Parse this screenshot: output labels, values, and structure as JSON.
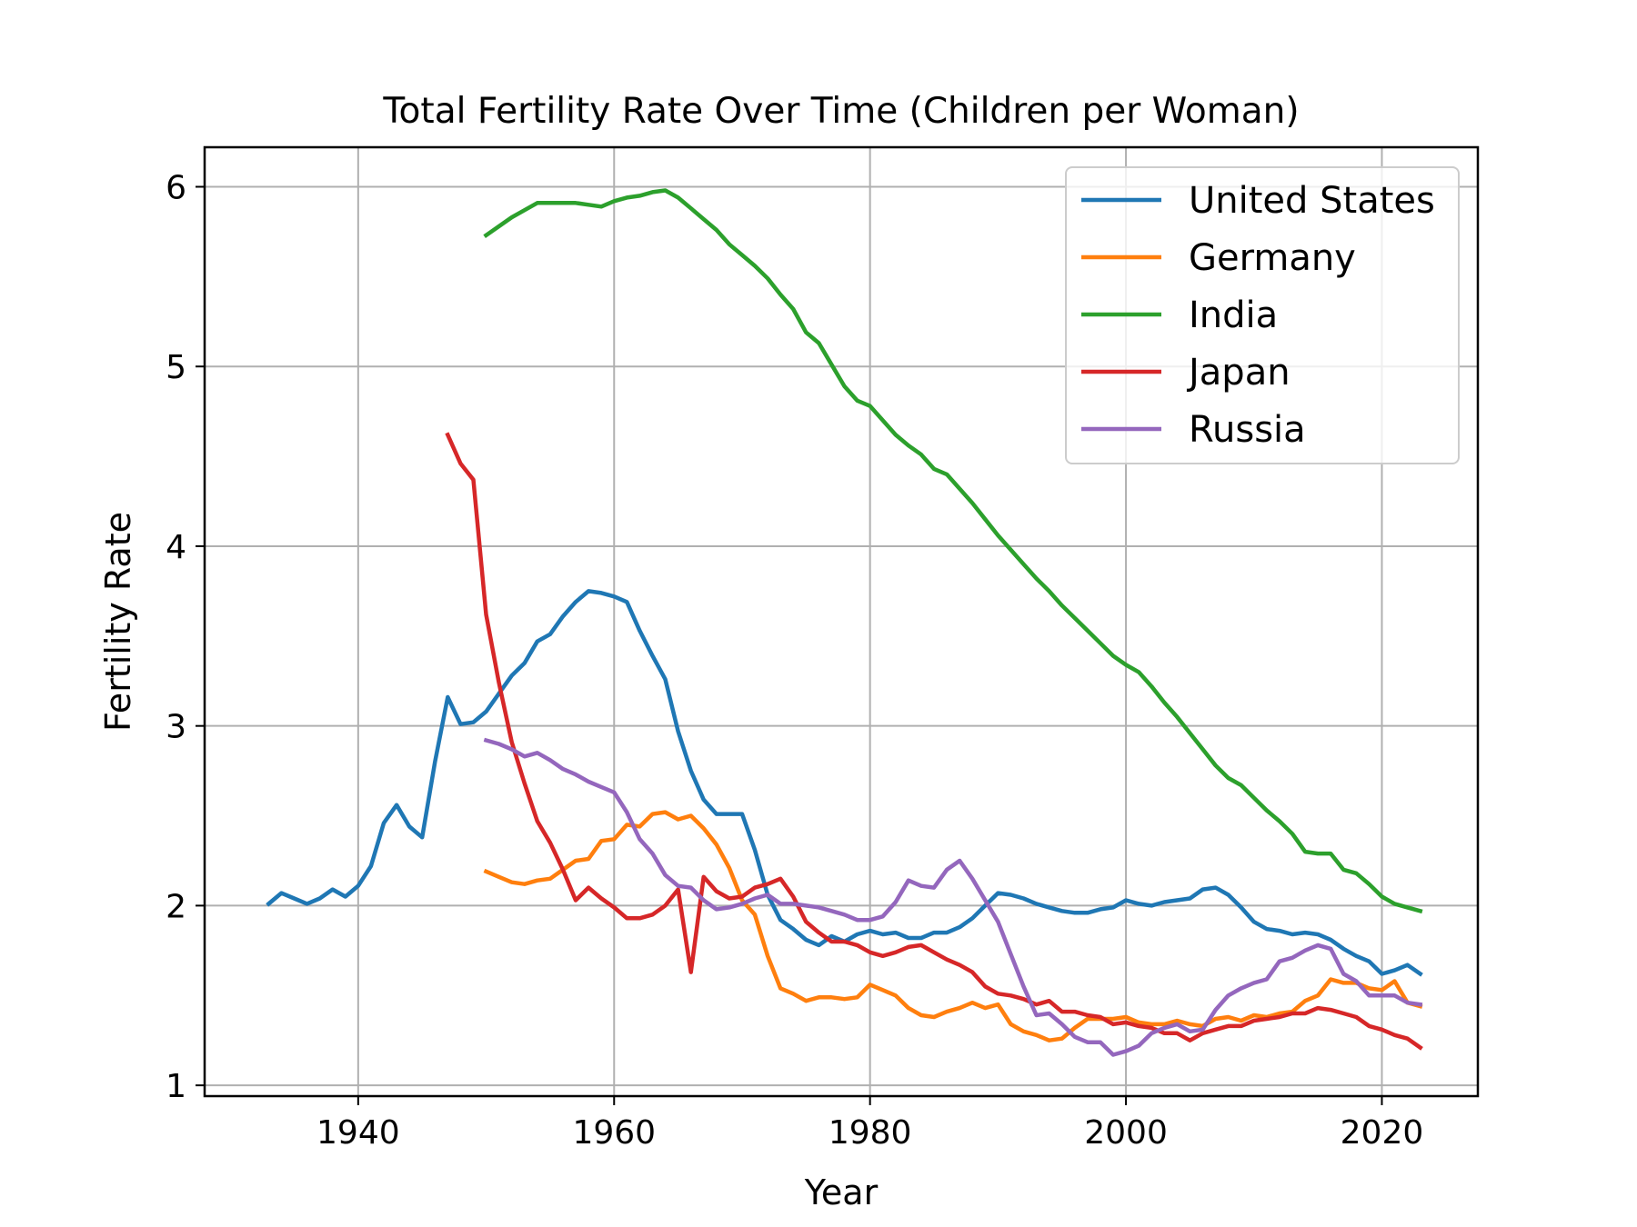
{
  "chart_data": {
    "type": "line",
    "title": "Total Fertility Rate Over Time (Children per Woman)",
    "xlabel": "Year",
    "ylabel": "Fertility Rate",
    "xlim": [
      1928,
      2027.5
    ],
    "ylim": [
      0.94,
      6.22
    ],
    "xticks": [
      1940,
      1960,
      1980,
      2000,
      2020
    ],
    "yticks": [
      1,
      2,
      3,
      4,
      5,
      6
    ],
    "grid": true,
    "legend_position": "top-right",
    "series": [
      {
        "name": "United States",
        "color": "#1f77b4",
        "x": [
          1933,
          1934,
          1935,
          1936,
          1937,
          1938,
          1939,
          1940,
          1941,
          1942,
          1943,
          1944,
          1945,
          1946,
          1947,
          1948,
          1949,
          1950,
          1951,
          1952,
          1953,
          1954,
          1955,
          1956,
          1957,
          1958,
          1959,
          1960,
          1961,
          1962,
          1963,
          1964,
          1965,
          1966,
          1967,
          1968,
          1969,
          1970,
          1971,
          1972,
          1973,
          1974,
          1975,
          1976,
          1977,
          1978,
          1979,
          1980,
          1981,
          1982,
          1983,
          1984,
          1985,
          1986,
          1987,
          1988,
          1989,
          1990,
          1991,
          1992,
          1993,
          1994,
          1995,
          1996,
          1997,
          1998,
          1999,
          2000,
          2001,
          2002,
          2003,
          2004,
          2005,
          2006,
          2007,
          2008,
          2009,
          2010,
          2011,
          2012,
          2013,
          2014,
          2015,
          2016,
          2017,
          2018,
          2019,
          2020,
          2021,
          2022,
          2023
        ],
        "y": [
          2.01,
          2.07,
          2.04,
          2.01,
          2.04,
          2.09,
          2.05,
          2.11,
          2.22,
          2.46,
          2.56,
          2.44,
          2.38,
          2.8,
          3.16,
          3.01,
          3.02,
          3.08,
          3.18,
          3.28,
          3.35,
          3.47,
          3.51,
          3.61,
          3.69,
          3.75,
          3.74,
          3.72,
          3.69,
          3.53,
          3.39,
          3.26,
          2.97,
          2.75,
          2.59,
          2.51,
          2.51,
          2.51,
          2.31,
          2.06,
          1.92,
          1.87,
          1.81,
          1.78,
          1.83,
          1.8,
          1.84,
          1.86,
          1.84,
          1.85,
          1.82,
          1.82,
          1.85,
          1.85,
          1.88,
          1.93,
          2.0,
          2.07,
          2.06,
          2.04,
          2.01,
          1.99,
          1.97,
          1.96,
          1.96,
          1.98,
          1.99,
          2.03,
          2.01,
          2.0,
          2.02,
          2.03,
          2.04,
          2.09,
          2.1,
          2.06,
          1.99,
          1.91,
          1.87,
          1.86,
          1.84,
          1.85,
          1.84,
          1.81,
          1.76,
          1.72,
          1.69,
          1.62,
          1.64,
          1.67,
          1.62
        ]
      },
      {
        "name": "Germany",
        "color": "#ff7f0e",
        "x": [
          1950,
          1951,
          1952,
          1953,
          1954,
          1955,
          1956,
          1957,
          1958,
          1959,
          1960,
          1961,
          1962,
          1963,
          1964,
          1965,
          1966,
          1967,
          1968,
          1969,
          1970,
          1971,
          1972,
          1973,
          1974,
          1975,
          1976,
          1977,
          1978,
          1979,
          1980,
          1981,
          1982,
          1983,
          1984,
          1985,
          1986,
          1987,
          1988,
          1989,
          1990,
          1991,
          1992,
          1993,
          1994,
          1995,
          1996,
          1997,
          1998,
          1999,
          2000,
          2001,
          2002,
          2003,
          2004,
          2005,
          2006,
          2007,
          2008,
          2009,
          2010,
          2011,
          2012,
          2013,
          2014,
          2015,
          2016,
          2017,
          2018,
          2019,
          2020,
          2021,
          2022,
          2023
        ],
        "y": [
          2.19,
          2.16,
          2.13,
          2.12,
          2.14,
          2.15,
          2.2,
          2.25,
          2.26,
          2.36,
          2.37,
          2.45,
          2.44,
          2.51,
          2.52,
          2.48,
          2.5,
          2.43,
          2.34,
          2.21,
          2.03,
          1.95,
          1.72,
          1.54,
          1.51,
          1.47,
          1.49,
          1.49,
          1.48,
          1.49,
          1.56,
          1.53,
          1.5,
          1.43,
          1.39,
          1.38,
          1.41,
          1.43,
          1.46,
          1.43,
          1.45,
          1.34,
          1.3,
          1.28,
          1.25,
          1.26,
          1.32,
          1.37,
          1.37,
          1.37,
          1.38,
          1.35,
          1.34,
          1.34,
          1.36,
          1.34,
          1.33,
          1.37,
          1.38,
          1.36,
          1.39,
          1.38,
          1.4,
          1.41,
          1.47,
          1.5,
          1.59,
          1.57,
          1.57,
          1.54,
          1.53,
          1.58,
          1.46,
          1.44
        ]
      },
      {
        "name": "India",
        "color": "#2ca02c",
        "x": [
          1950,
          1951,
          1952,
          1953,
          1954,
          1955,
          1956,
          1957,
          1958,
          1959,
          1960,
          1961,
          1962,
          1963,
          1964,
          1965,
          1966,
          1967,
          1968,
          1969,
          1970,
          1971,
          1972,
          1973,
          1974,
          1975,
          1976,
          1977,
          1978,
          1979,
          1980,
          1981,
          1982,
          1983,
          1984,
          1985,
          1986,
          1987,
          1988,
          1989,
          1990,
          1991,
          1992,
          1993,
          1994,
          1995,
          1996,
          1997,
          1998,
          1999,
          2000,
          2001,
          2002,
          2003,
          2004,
          2005,
          2006,
          2007,
          2008,
          2009,
          2010,
          2011,
          2012,
          2013,
          2014,
          2015,
          2016,
          2017,
          2018,
          2019,
          2020,
          2021,
          2022,
          2023
        ],
        "y": [
          5.73,
          5.78,
          5.83,
          5.87,
          5.91,
          5.91,
          5.91,
          5.91,
          5.9,
          5.89,
          5.92,
          5.94,
          5.95,
          5.97,
          5.98,
          5.94,
          5.88,
          5.82,
          5.76,
          5.68,
          5.62,
          5.56,
          5.49,
          5.4,
          5.32,
          5.19,
          5.13,
          5.01,
          4.89,
          4.81,
          4.78,
          4.7,
          4.62,
          4.56,
          4.51,
          4.43,
          4.4,
          4.32,
          4.24,
          4.15,
          4.06,
          3.98,
          3.9,
          3.82,
          3.75,
          3.67,
          3.6,
          3.53,
          3.46,
          3.39,
          3.34,
          3.3,
          3.22,
          3.13,
          3.05,
          2.96,
          2.87,
          2.78,
          2.71,
          2.67,
          2.6,
          2.53,
          2.47,
          2.4,
          2.3,
          2.29,
          2.29,
          2.2,
          2.18,
          2.12,
          2.05,
          2.01,
          1.99,
          1.97
        ]
      },
      {
        "name": "Japan",
        "color": "#d62728",
        "x": [
          1947,
          1948,
          1949,
          1950,
          1951,
          1952,
          1953,
          1954,
          1955,
          1956,
          1957,
          1958,
          1959,
          1960,
          1961,
          1962,
          1963,
          1964,
          1965,
          1966,
          1967,
          1968,
          1969,
          1970,
          1971,
          1972,
          1973,
          1974,
          1975,
          1976,
          1977,
          1978,
          1979,
          1980,
          1981,
          1982,
          1983,
          1984,
          1985,
          1986,
          1987,
          1988,
          1989,
          1990,
          1991,
          1992,
          1993,
          1994,
          1995,
          1996,
          1997,
          1998,
          1999,
          2000,
          2001,
          2002,
          2003,
          2004,
          2005,
          2006,
          2007,
          2008,
          2009,
          2010,
          2011,
          2012,
          2013,
          2014,
          2015,
          2016,
          2017,
          2018,
          2019,
          2020,
          2021,
          2022,
          2023
        ],
        "y": [
          4.62,
          4.46,
          4.37,
          3.62,
          3.24,
          2.91,
          2.68,
          2.47,
          2.35,
          2.2,
          2.03,
          2.1,
          2.04,
          1.99,
          1.93,
          1.93,
          1.95,
          2.0,
          2.09,
          1.63,
          2.16,
          2.08,
          2.04,
          2.05,
          2.1,
          2.12,
          2.15,
          2.05,
          1.91,
          1.85,
          1.8,
          1.8,
          1.78,
          1.74,
          1.72,
          1.74,
          1.77,
          1.78,
          1.74,
          1.7,
          1.67,
          1.63,
          1.55,
          1.51,
          1.5,
          1.48,
          1.45,
          1.47,
          1.41,
          1.41,
          1.39,
          1.38,
          1.34,
          1.35,
          1.33,
          1.32,
          1.29,
          1.29,
          1.25,
          1.29,
          1.31,
          1.33,
          1.33,
          1.36,
          1.37,
          1.38,
          1.4,
          1.4,
          1.43,
          1.42,
          1.4,
          1.38,
          1.33,
          1.31,
          1.28,
          1.26,
          1.21
        ]
      },
      {
        "name": "Russia",
        "color": "#9467bd",
        "x": [
          1950,
          1951,
          1952,
          1953,
          1954,
          1955,
          1956,
          1957,
          1958,
          1959,
          1960,
          1961,
          1962,
          1963,
          1964,
          1965,
          1966,
          1967,
          1968,
          1969,
          1970,
          1971,
          1972,
          1973,
          1974,
          1975,
          1976,
          1977,
          1978,
          1979,
          1980,
          1981,
          1982,
          1983,
          1984,
          1985,
          1986,
          1987,
          1988,
          1989,
          1990,
          1991,
          1992,
          1993,
          1994,
          1995,
          1996,
          1997,
          1998,
          1999,
          2000,
          2001,
          2002,
          2003,
          2004,
          2005,
          2006,
          2007,
          2008,
          2009,
          2010,
          2011,
          2012,
          2013,
          2014,
          2015,
          2016,
          2017,
          2018,
          2019,
          2020,
          2021,
          2022,
          2023
        ],
        "y": [
          2.92,
          2.9,
          2.87,
          2.83,
          2.85,
          2.81,
          2.76,
          2.73,
          2.69,
          2.66,
          2.63,
          2.52,
          2.37,
          2.29,
          2.17,
          2.11,
          2.1,
          2.03,
          1.98,
          1.99,
          2.01,
          2.04,
          2.06,
          2.01,
          2.01,
          2.0,
          1.99,
          1.97,
          1.95,
          1.92,
          1.92,
          1.94,
          2.02,
          2.14,
          2.11,
          2.1,
          2.2,
          2.25,
          2.15,
          2.03,
          1.91,
          1.73,
          1.55,
          1.39,
          1.4,
          1.34,
          1.27,
          1.24,
          1.24,
          1.17,
          1.19,
          1.22,
          1.29,
          1.32,
          1.34,
          1.3,
          1.31,
          1.42,
          1.5,
          1.54,
          1.57,
          1.59,
          1.69,
          1.71,
          1.75,
          1.78,
          1.76,
          1.62,
          1.58,
          1.5,
          1.5,
          1.5,
          1.46,
          1.45
        ]
      }
    ]
  }
}
